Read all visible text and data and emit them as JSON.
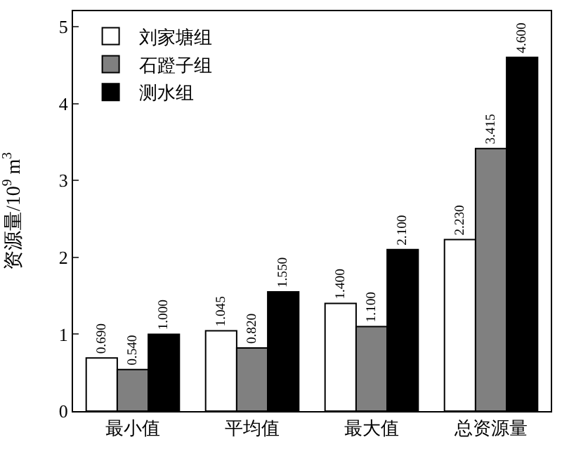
{
  "chart_data": {
    "type": "bar",
    "ylabel": "资源量/10$^{9}$ m$^{3}$",
    "categories": [
      "最小值",
      "平均值",
      "最大值",
      "总资源量"
    ],
    "series": [
      {
        "name": "刘家塘组",
        "color": "#ffffff",
        "values": [
          0.69,
          1.045,
          1.4,
          2.23
        ],
        "value_labels": [
          "0.690",
          "1.045",
          "1.400",
          "2.230"
        ]
      },
      {
        "name": "石蹬子组",
        "color": "#808080",
        "values": [
          0.54,
          0.82,
          1.1,
          3.415
        ],
        "value_labels": [
          "0.540",
          "0.820",
          "1.100",
          "3.415"
        ]
      },
      {
        "name": "测水组",
        "color": "#000000",
        "values": [
          1.0,
          1.55,
          2.1,
          4.6
        ],
        "value_labels": [
          "1.000",
          "1.550",
          "2.100",
          "4.600"
        ]
      }
    ],
    "ylim": [
      0,
      5.2
    ],
    "yticks": [
      0,
      1,
      2,
      3,
      4,
      5
    ],
    "grid": false,
    "legend": "top left"
  }
}
